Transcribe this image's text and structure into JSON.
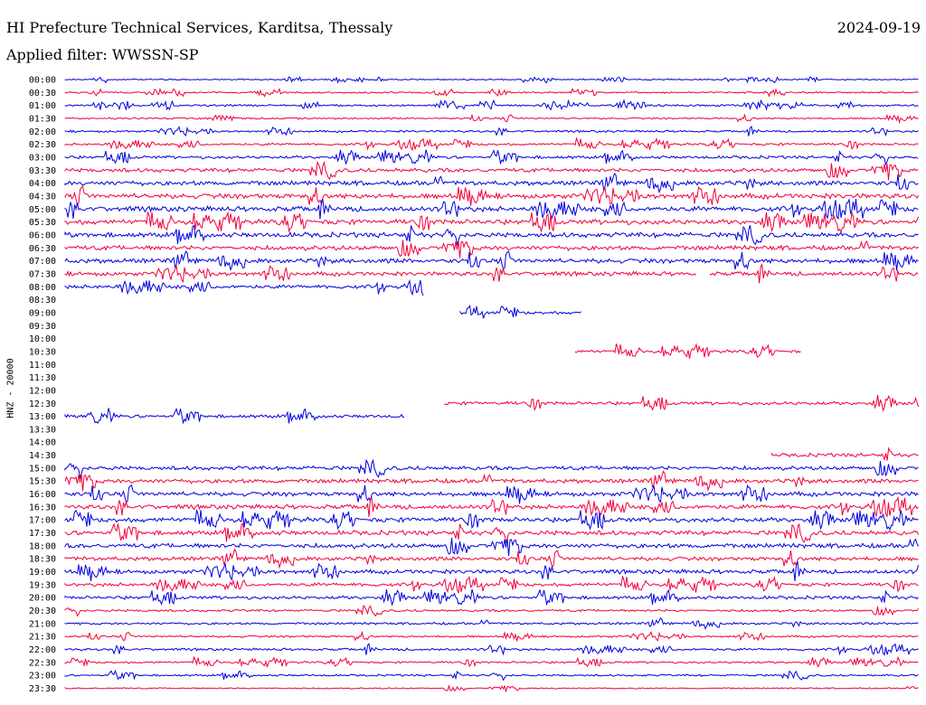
{
  "header": {
    "title": "HI Prefecture Technical Services, Karditsa, Thessaly",
    "date": "2024-09-19",
    "filter": "Applied filter: WWSSN-SP"
  },
  "chart_data": {
    "type": "line",
    "ylabel": "HNZ - 20000",
    "colors": [
      "#0000e0",
      "#f0003c"
    ],
    "rows": [
      {
        "label": "00:00",
        "start": 0.0,
        "end": 1.0,
        "amp": 0.2
      },
      {
        "label": "00:30",
        "start": 0.0,
        "end": 1.0,
        "amp": 0.25
      },
      {
        "label": "01:00",
        "start": 0.0,
        "end": 1.0,
        "amp": 0.3
      },
      {
        "label": "01:30",
        "start": 0.0,
        "end": 1.0,
        "amp": 0.25
      },
      {
        "label": "02:00",
        "start": 0.0,
        "end": 1.0,
        "amp": 0.3
      },
      {
        "label": "02:30",
        "start": 0.0,
        "end": 1.0,
        "amp": 0.35
      },
      {
        "label": "03:00",
        "start": 0.0,
        "end": 1.0,
        "amp": 0.45
      },
      {
        "label": "03:30",
        "start": 0.0,
        "end": 1.0,
        "amp": 0.6
      },
      {
        "label": "04:00",
        "start": 0.0,
        "end": 1.0,
        "amp": 0.7
      },
      {
        "label": "04:30",
        "start": 0.0,
        "end": 1.0,
        "amp": 0.75
      },
      {
        "label": "05:00",
        "start": 0.0,
        "end": 1.0,
        "amp": 0.75
      },
      {
        "label": "05:30",
        "start": 0.0,
        "end": 1.0,
        "amp": 0.75
      },
      {
        "label": "06:00",
        "start": 0.0,
        "end": 1.0,
        "amp": 0.75
      },
      {
        "label": "06:30",
        "start": 0.0,
        "end": 1.0,
        "amp": 0.7
      },
      {
        "label": "07:00",
        "start": 0.0,
        "end": 1.0,
        "amp": 0.7
      },
      {
        "label": "07:30",
        "start": 0.0,
        "end": 0.74,
        "amp": 0.6,
        "start2": 0.756,
        "end2": 1.0
      },
      {
        "label": "08:00",
        "start": 0.0,
        "end": 0.42,
        "amp": 0.55
      },
      {
        "label": "08:30",
        "start": 0.0,
        "end": 0.0,
        "amp": 0
      },
      {
        "label": "09:00",
        "start": 0.463,
        "end": 0.606,
        "amp": 0.45
      },
      {
        "label": "09:30",
        "start": 0.0,
        "end": 0.0,
        "amp": 0
      },
      {
        "label": "10:00",
        "start": 0.0,
        "end": 0.0,
        "amp": 0
      },
      {
        "label": "10:30",
        "start": 0.598,
        "end": 0.862,
        "amp": 0.45
      },
      {
        "label": "11:00",
        "start": 0.0,
        "end": 0.0,
        "amp": 0
      },
      {
        "label": "11:30",
        "start": 0.0,
        "end": 0.0,
        "amp": 0
      },
      {
        "label": "12:00",
        "start": 0.0,
        "end": 0.0,
        "amp": 0
      },
      {
        "label": "12:30",
        "start": 0.445,
        "end": 1.0,
        "amp": 0.5
      },
      {
        "label": "13:00",
        "start": 0.0,
        "end": 0.398,
        "amp": 0.5
      },
      {
        "label": "13:30",
        "start": 0.0,
        "end": 0.0,
        "amp": 0
      },
      {
        "label": "14:00",
        "start": 0.0,
        "end": 0.0,
        "amp": 0
      },
      {
        "label": "14:30",
        "start": 0.828,
        "end": 1.0,
        "amp": 0.55
      },
      {
        "label": "15:00",
        "start": 0.0,
        "end": 1.0,
        "amp": 0.6
      },
      {
        "label": "15:30",
        "start": 0.0,
        "end": 1.0,
        "amp": 0.65
      },
      {
        "label": "16:00",
        "start": 0.0,
        "end": 1.0,
        "amp": 0.65
      },
      {
        "label": "16:30",
        "start": 0.0,
        "end": 1.0,
        "amp": 0.65
      },
      {
        "label": "17:00",
        "start": 0.0,
        "end": 1.0,
        "amp": 0.7
      },
      {
        "label": "17:30",
        "start": 0.0,
        "end": 1.0,
        "amp": 0.7
      },
      {
        "label": "18:00",
        "start": 0.0,
        "end": 1.0,
        "amp": 0.7
      },
      {
        "label": "18:30",
        "start": 0.0,
        "end": 1.0,
        "amp": 0.6
      },
      {
        "label": "19:00",
        "start": 0.0,
        "end": 1.0,
        "amp": 0.6
      },
      {
        "label": "19:30",
        "start": 0.0,
        "end": 1.0,
        "amp": 0.5
      },
      {
        "label": "20:00",
        "start": 0.0,
        "end": 1.0,
        "amp": 0.5
      },
      {
        "label": "20:30",
        "start": 0.0,
        "end": 1.0,
        "amp": 0.35
      },
      {
        "label": "21:00",
        "start": 0.0,
        "end": 1.0,
        "amp": 0.35
      },
      {
        "label": "21:30",
        "start": 0.0,
        "end": 1.0,
        "amp": 0.3
      },
      {
        "label": "22:00",
        "start": 0.0,
        "end": 1.0,
        "amp": 0.35
      },
      {
        "label": "22:30",
        "start": 0.0,
        "end": 1.0,
        "amp": 0.3
      },
      {
        "label": "23:00",
        "start": 0.0,
        "end": 1.0,
        "amp": 0.3
      },
      {
        "label": "23:30",
        "start": 0.0,
        "end": 1.0,
        "amp": 0.2
      }
    ]
  }
}
